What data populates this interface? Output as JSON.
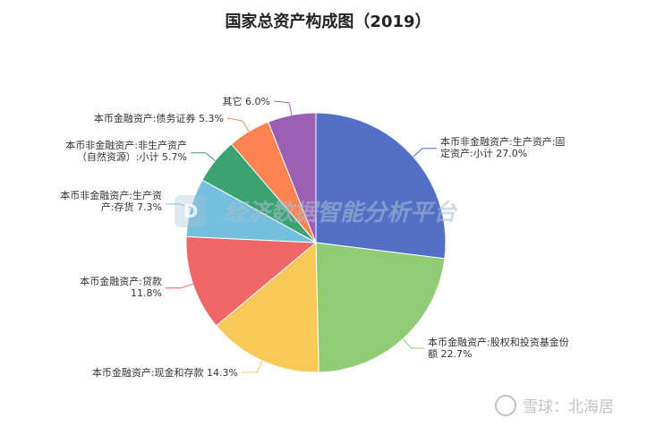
{
  "chart_data": {
    "type": "pie",
    "title": "国家总资产构成图（2019）",
    "start_angle_deg": 90,
    "direction": "clockwise",
    "slices": [
      {
        "label_lines": [
          "本币非金融资产:生产资产:固",
          "定资产:小计 27.0%"
        ],
        "value": 27.0,
        "color": "#5470c6"
      },
      {
        "label_lines": [
          "本币金融资产:股权和投资基金份",
          "额 22.7%"
        ],
        "value": 22.7,
        "color": "#91cc75"
      },
      {
        "label_lines": [
          "本币金融资产:现金和存款 14.3%"
        ],
        "value": 14.3,
        "color": "#fac858"
      },
      {
        "label_lines": [
          "本币金融资产:贷款",
          "11.8%"
        ],
        "value": 11.8,
        "color": "#ee6666"
      },
      {
        "label_lines": [
          "本币非金融资产:生产资",
          "产:存货 7.3%"
        ],
        "value": 7.3,
        "color": "#73c0de"
      },
      {
        "label_lines": [
          "本币非金融资产:非生产资产",
          "（自然资源）:小计 5.7%"
        ],
        "value": 5.7,
        "color": "#3ba272"
      },
      {
        "label_lines": [
          "本币金融资产:债务证券 5.3%"
        ],
        "value": 5.3,
        "color": "#fc8452"
      },
      {
        "label_lines": [
          "其它 6.0%"
        ],
        "value": 6.0,
        "color": "#9a60b4"
      }
    ]
  },
  "watermark": {
    "text": "经济数据智能分析平台",
    "logo_text": "D"
  },
  "xueqiu": {
    "text": "雪球：北海居"
  }
}
